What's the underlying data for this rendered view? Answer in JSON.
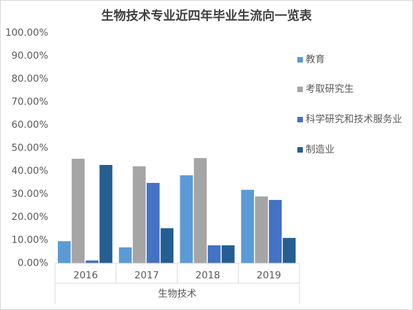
{
  "chart_data": {
    "type": "bar",
    "title": "生物技术专业近四年毕业生流向一览表",
    "categories": [
      "2016",
      "2017",
      "2018",
      "2019"
    ],
    "x_group_label": "生物技术",
    "series": [
      {
        "name": "教育",
        "color": "#5b9bd5",
        "values": [
          9.6,
          6.9,
          38.2,
          31.9
        ]
      },
      {
        "name": "考取研究生",
        "color": "#a5a5a5",
        "values": [
          45.4,
          42.1,
          45.7,
          29.0
        ]
      },
      {
        "name": "科学研究和技术服务业",
        "color": "#4472c4",
        "values": [
          1.2,
          34.9,
          7.8,
          27.5
        ]
      },
      {
        "name": "制造业",
        "color": "#255e91",
        "values": [
          42.7,
          15.2,
          7.8,
          11.0
        ]
      }
    ],
    "ylim": [
      0,
      100
    ],
    "yticks": [
      {
        "value": 0,
        "label": "0.00%"
      },
      {
        "value": 10,
        "label": "10.00%"
      },
      {
        "value": 20,
        "label": "20.00%"
      },
      {
        "value": 30,
        "label": "30.00%"
      },
      {
        "value": 40,
        "label": "40.00%"
      },
      {
        "value": 50,
        "label": "50.00%"
      },
      {
        "value": 60,
        "label": "60.00%"
      },
      {
        "value": 70,
        "label": "70.00%"
      },
      {
        "value": 80,
        "label": "80.00%"
      },
      {
        "value": 90,
        "label": "90.00%"
      },
      {
        "value": 100,
        "label": "100.00%"
      }
    ],
    "grid": false,
    "legend": "right"
  }
}
